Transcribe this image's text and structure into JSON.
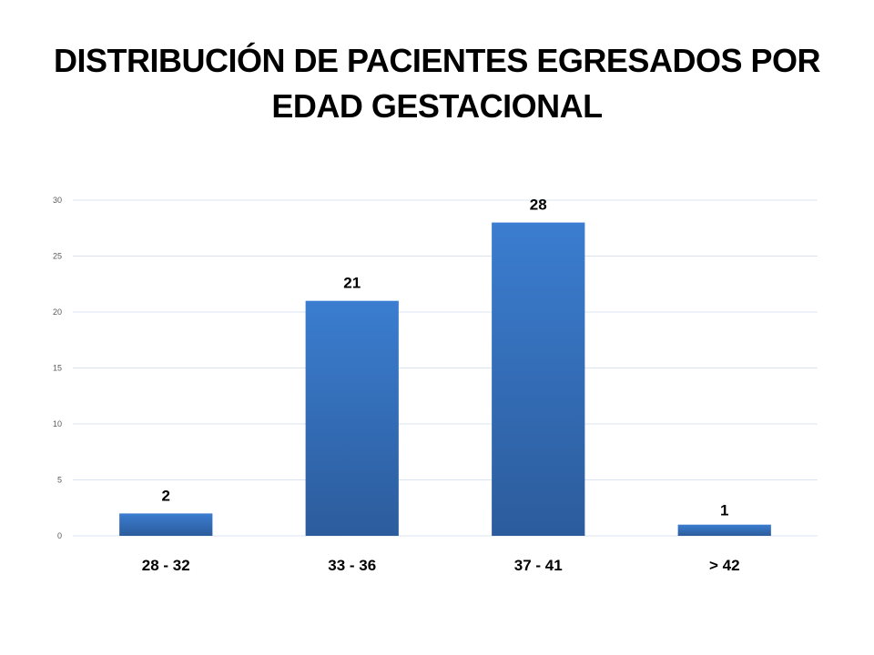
{
  "chart_data": {
    "type": "bar",
    "title": "DISTRIBUCIÓN DE PACIENTES EGRESADOS POR EDAD GESTACIONAL",
    "xlabel": "",
    "ylabel": "",
    "categories": [
      "28 - 32",
      "33 - 36",
      "37 - 41",
      "> 42"
    ],
    "values": [
      2,
      21,
      28,
      1
    ],
    "data_labels": [
      "2",
      "21",
      "28",
      "1"
    ],
    "y_ticks": [
      0,
      5,
      10,
      15,
      20,
      25,
      30
    ],
    "ylim": [
      0,
      30
    ],
    "grid": true,
    "legend": "none",
    "bar_color_top": "#3b7dd0",
    "bar_color_bottom": "#2c5c9c",
    "grid_color": "#d9e4f0"
  }
}
